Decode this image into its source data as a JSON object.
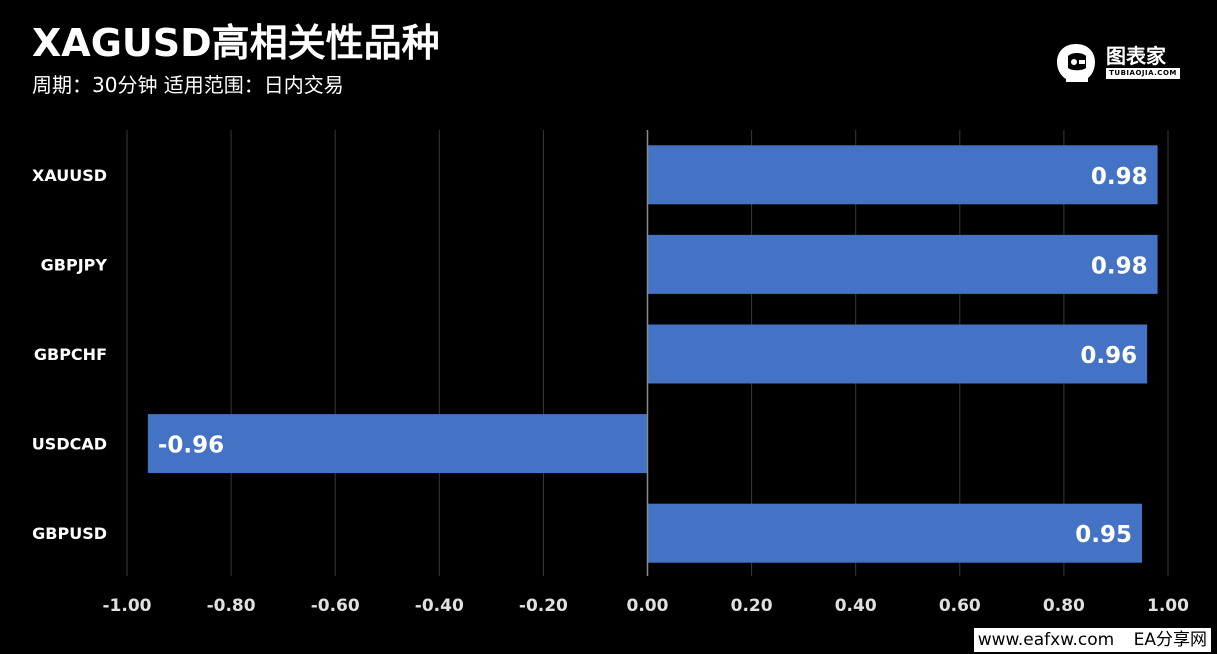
{
  "header": {
    "title": "XAGUSD高相关性品种",
    "subtitle": "周期：30分钟  适用范围：日内交易"
  },
  "logo": {
    "name": "图表家",
    "url_text": "TUBIAOJIA.COM",
    "icon": "robot-head-icon"
  },
  "footer": {
    "site": "www.eafxw.com",
    "brand": "EA分享网"
  },
  "colors": {
    "background": "#000000",
    "bar": "#4472c4",
    "grid": "#3a3a3a",
    "zero_line": "#8c8c8c",
    "text": "#ffffff",
    "tick_text": "#e0e0e0"
  },
  "chart_data": {
    "type": "bar",
    "orientation": "horizontal",
    "categories": [
      "XAUUSD",
      "GBPJPY",
      "GBPCHF",
      "USDCAD",
      "GBPUSD"
    ],
    "values": [
      0.98,
      0.98,
      0.96,
      -0.96,
      0.95
    ],
    "value_labels": [
      "0.98",
      "0.98",
      "0.96",
      "-0.96",
      "0.95"
    ],
    "xlim": [
      -1.0,
      1.0
    ],
    "xticks": [
      -1.0,
      -0.8,
      -0.6,
      -0.4,
      -0.2,
      0.0,
      0.2,
      0.4,
      0.6,
      0.8,
      1.0
    ],
    "xtick_labels": [
      "-1.00",
      "-0.80",
      "-0.60",
      "-0.40",
      "-0.20",
      "0.00",
      "0.20",
      "0.40",
      "0.60",
      "0.80",
      "1.00"
    ],
    "grid": true,
    "legend": "none",
    "title": "",
    "xlabel": "",
    "ylabel": ""
  }
}
